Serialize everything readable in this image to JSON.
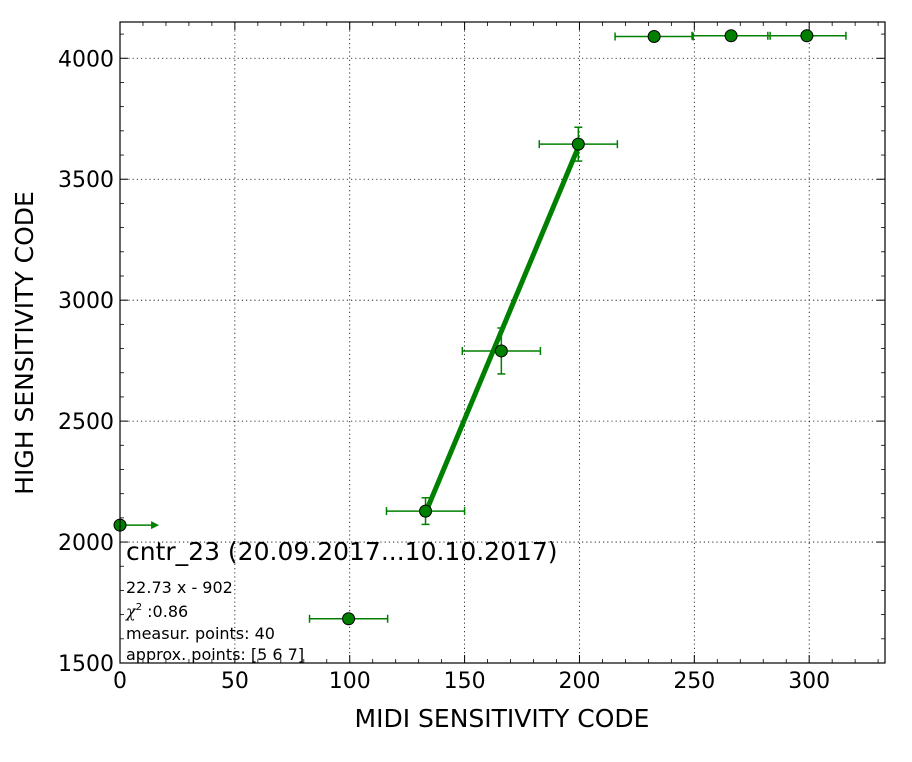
{
  "chart_data": {
    "type": "scatter",
    "xlabel": "MIDI SENSITIVITY CODE",
    "ylabel": "HIGH SENSITIVITY CODE",
    "xlim": [
      0,
      333
    ],
    "ylim": [
      1500,
      4150
    ],
    "x_ticks": [
      0,
      50,
      100,
      150,
      200,
      250,
      300
    ],
    "y_ticks": [
      1500,
      2000,
      2500,
      3000,
      3500,
      4000
    ],
    "grid": true,
    "color": "#008000",
    "marker_fill": "#007f00",
    "points": [
      {
        "x": 0,
        "y": 2070,
        "xerr": 17,
        "yerr": 0,
        "arrow": "right"
      },
      {
        "x": 99.5,
        "y": 1683,
        "xerr": 17,
        "yerr": 0
      },
      {
        "x": 133,
        "y": 2128,
        "xerr": 17,
        "yerr": 55
      },
      {
        "x": 166,
        "y": 2790,
        "xerr": 17,
        "yerr": 95
      },
      {
        "x": 199.5,
        "y": 3645,
        "xerr": 17,
        "yerr": 70
      },
      {
        "x": 232.5,
        "y": 4090,
        "xerr": 17,
        "yerr": 0
      },
      {
        "x": 266,
        "y": 4093,
        "xerr": 17,
        "yerr": 0
      },
      {
        "x": 299,
        "y": 4093,
        "xerr": 17,
        "yerr": 0
      }
    ],
    "fit": {
      "slope": 22.73,
      "intercept": -902,
      "x_range": [
        133,
        199.5
      ]
    }
  },
  "annotation": {
    "title": "cntr_23 (20.09.2017...10.10.2017)",
    "formula": "22.73 x - 902",
    "chi_symbol": "χ",
    "chi_power": "2",
    "chi_value": " :0.86",
    "measur_points": "measur. points: 40",
    "approx_points": "approx. points: [5 6 7]"
  }
}
